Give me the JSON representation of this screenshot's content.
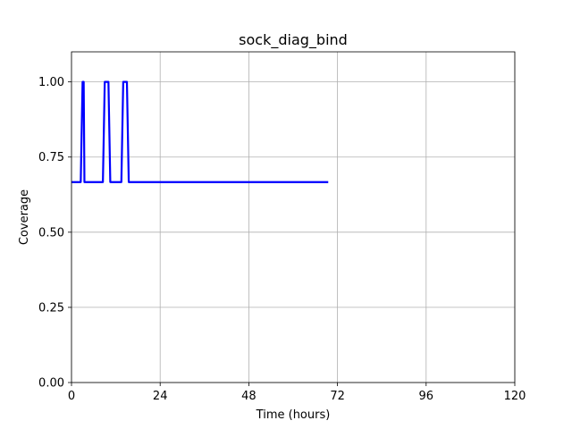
{
  "chart_data": {
    "type": "line",
    "title": "sock_diag_bind",
    "xlabel": "Time (hours)",
    "ylabel": "Coverage",
    "xlim": [
      0,
      120
    ],
    "ylim": [
      0,
      1.1
    ],
    "grid": true,
    "x_ticks": [
      0,
      24,
      48,
      72,
      96,
      120
    ],
    "x_tick_labels": [
      "0",
      "24",
      "48",
      "72",
      "96",
      "120"
    ],
    "y_ticks": [
      0,
      0.25,
      0.5,
      0.75,
      1.0
    ],
    "y_tick_labels": [
      "0.00",
      "0.25",
      "0.50",
      "0.75",
      "1.00"
    ],
    "series": [
      {
        "color": "#0000ff",
        "x": [
          0,
          2.5,
          3.0,
          3.3,
          3.5,
          8.5,
          9.0,
          10.0,
          10.5,
          13.5,
          14.0,
          15.0,
          15.5,
          69.5
        ],
        "y": [
          0.6667,
          0.6667,
          1.0,
          1.0,
          0.6667,
          0.6667,
          1.0,
          1.0,
          0.6667,
          0.6667,
          1.0,
          1.0,
          0.6667,
          0.6667
        ]
      }
    ]
  }
}
